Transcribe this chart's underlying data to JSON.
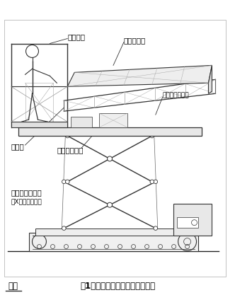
{
  "title": "図1　開発機の構造と各部の名称",
  "line_color": "#333333",
  "light_line": "#666666",
  "labels": {
    "gondola": "ゴンドラ",
    "container_dai": "コンテナ台",
    "container_deck": "コンテナデッキ",
    "boom": "ブーム",
    "base_deck": "ベースデッキ",
    "lift": "昇　降　装　置",
    "lift_sub": "（X字状リンク）"
  },
  "fig_width": 3.32,
  "fig_height": 4.17,
  "dpi": 100,
  "xlim": [
    0,
    33.2
  ],
  "ylim": [
    0,
    41.7
  ]
}
